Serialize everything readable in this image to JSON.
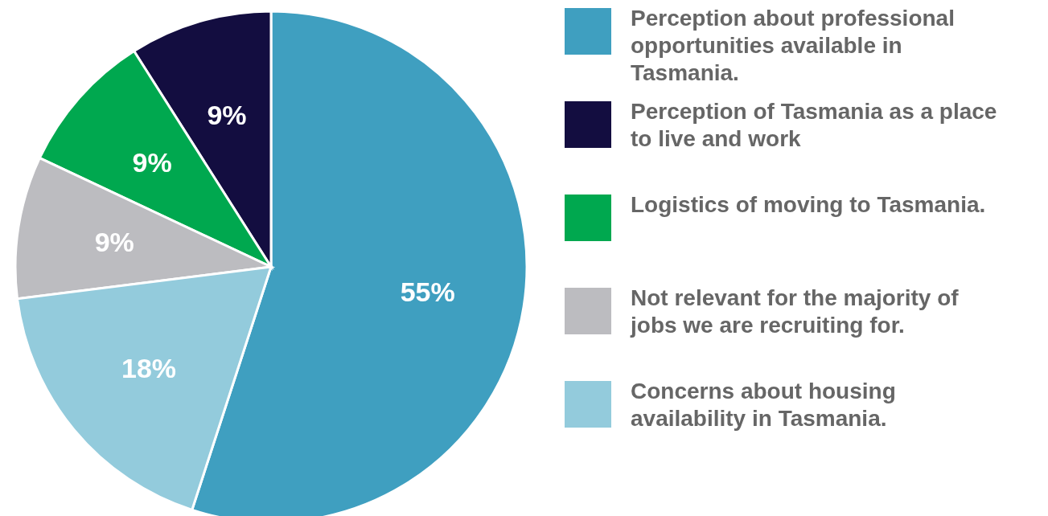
{
  "chart_data": {
    "type": "pie",
    "categories": [
      "Perception about professional opportunities available in Tasmania.",
      "Perception of Tasmania as a place to live and work",
      "Logistics of moving to Tasmania.",
      "Not relevant for the majority of jobs we are recruiting for.",
      "Concerns about housing availability in Tasmania."
    ],
    "values": [
      55,
      9,
      9,
      9,
      18
    ],
    "value_labels": [
      "55%",
      "9%",
      "9%",
      "9%",
      "18%"
    ],
    "colors": [
      "#3f9fc0",
      "#130d40",
      "#00a84f",
      "#bcbcc0",
      "#93cbdc"
    ],
    "legend": "right"
  }
}
